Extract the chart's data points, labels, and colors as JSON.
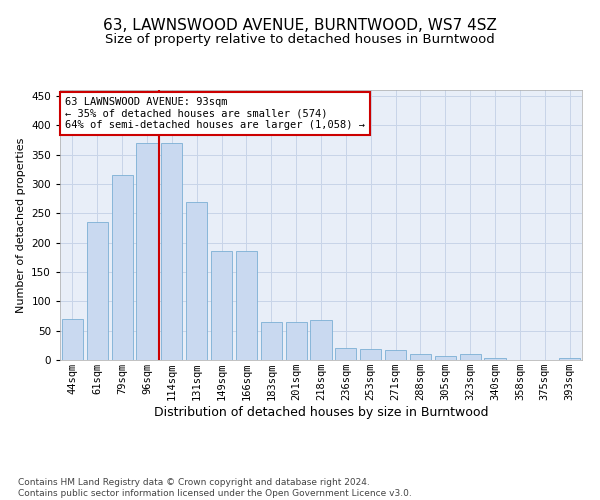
{
  "title": "63, LAWNSWOOD AVENUE, BURNTWOOD, WS7 4SZ",
  "subtitle": "Size of property relative to detached houses in Burntwood",
  "xlabel": "Distribution of detached houses by size in Burntwood",
  "ylabel": "Number of detached properties",
  "categories": [
    "44sqm",
    "61sqm",
    "79sqm",
    "96sqm",
    "114sqm",
    "131sqm",
    "149sqm",
    "166sqm",
    "183sqm",
    "201sqm",
    "218sqm",
    "236sqm",
    "253sqm",
    "271sqm",
    "288sqm",
    "305sqm",
    "323sqm",
    "340sqm",
    "358sqm",
    "375sqm",
    "393sqm"
  ],
  "values": [
    70,
    235,
    315,
    370,
    370,
    270,
    185,
    185,
    65,
    65,
    68,
    20,
    18,
    17,
    10,
    7,
    10,
    3,
    0,
    0,
    3
  ],
  "bar_color": "#c9d9f0",
  "bar_edge_color": "#7bafd4",
  "vline_pos": 3.5,
  "vline_color": "#cc0000",
  "annotation_text": "63 LAWNSWOOD AVENUE: 93sqm\n← 35% of detached houses are smaller (574)\n64% of semi-detached houses are larger (1,058) →",
  "annotation_box_facecolor": "#ffffff",
  "annotation_box_edgecolor": "#cc0000",
  "ylim": [
    0,
    460
  ],
  "yticks": [
    0,
    50,
    100,
    150,
    200,
    250,
    300,
    350,
    400,
    450
  ],
  "grid_color": "#c8d4e8",
  "background_color": "#e8eef8",
  "footnote": "Contains HM Land Registry data © Crown copyright and database right 2024.\nContains public sector information licensed under the Open Government Licence v3.0.",
  "title_fontsize": 11,
  "subtitle_fontsize": 9.5,
  "xlabel_fontsize": 9,
  "ylabel_fontsize": 8,
  "tick_fontsize": 7.5,
  "annotation_fontsize": 7.5,
  "footnote_fontsize": 6.5
}
